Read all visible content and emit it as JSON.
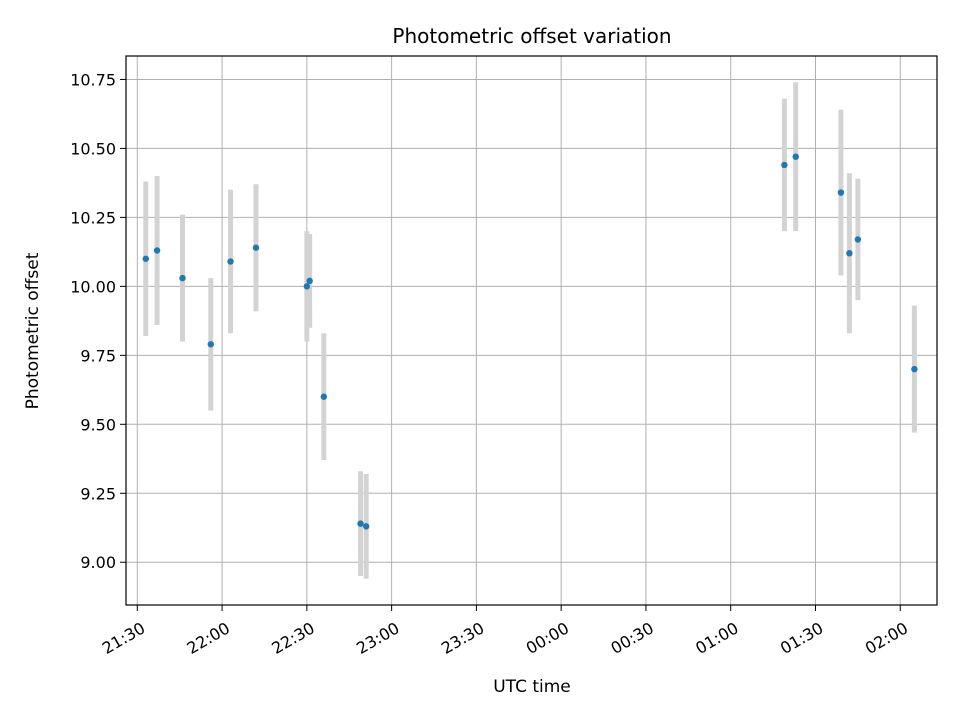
{
  "chart_data": {
    "type": "scatter",
    "title": "Photometric offset variation",
    "xlabel": "UTC time",
    "ylabel": "Photometric offset",
    "x_axis": {
      "kind": "time",
      "range": [
        "21:26",
        "02:13"
      ],
      "ticks": [
        "21:30",
        "22:00",
        "22:30",
        "23:00",
        "23:30",
        "00:00",
        "00:30",
        "01:00",
        "01:30",
        "02:00"
      ]
    },
    "y_axis": {
      "range": [
        8.845,
        10.835
      ],
      "ticks": [
        9.0,
        9.25,
        9.5,
        9.75,
        10.0,
        10.25,
        10.5,
        10.75
      ],
      "tick_labels": [
        "9.00",
        "9.25",
        "9.50",
        "9.75",
        "10.00",
        "10.25",
        "10.50",
        "10.75"
      ]
    },
    "grid": true,
    "point_color": "#1f77b4",
    "errorbar_color": "#d3d3d3",
    "points": [
      {
        "time": "21:33",
        "y": 10.1,
        "err": 0.28
      },
      {
        "time": "21:37",
        "y": 10.13,
        "err": 0.27
      },
      {
        "time": "21:46",
        "y": 10.03,
        "err": 0.23
      },
      {
        "time": "21:56",
        "y": 9.79,
        "err": 0.24
      },
      {
        "time": "22:03",
        "y": 10.09,
        "err": 0.26
      },
      {
        "time": "22:12",
        "y": 10.14,
        "err": 0.23
      },
      {
        "time": "22:30",
        "y": 10.0,
        "err": 0.2
      },
      {
        "time": "22:31",
        "y": 10.02,
        "err": 0.17
      },
      {
        "time": "22:36",
        "y": 9.6,
        "err": 0.23
      },
      {
        "time": "22:49",
        "y": 9.14,
        "err": 0.19
      },
      {
        "time": "22:51",
        "y": 9.13,
        "err": 0.19
      },
      {
        "time": "01:19",
        "y": 10.44,
        "err": 0.24
      },
      {
        "time": "01:23",
        "y": 10.47,
        "err": 0.27
      },
      {
        "time": "01:39",
        "y": 10.34,
        "err": 0.3
      },
      {
        "time": "01:42",
        "y": 10.12,
        "err": 0.29
      },
      {
        "time": "01:45",
        "y": 10.17,
        "err": 0.22
      },
      {
        "time": "02:05",
        "y": 9.7,
        "err": 0.23
      }
    ]
  }
}
